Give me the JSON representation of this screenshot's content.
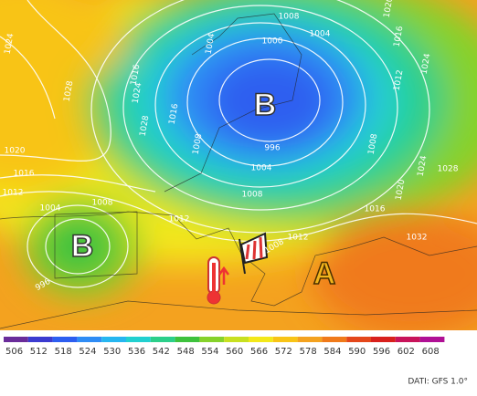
{
  "map": {
    "isobar_labels": [
      "1024",
      "1028",
      "1020",
      "1016",
      "1012",
      "1004",
      "1008",
      "1012",
      "996",
      "1004",
      "1008",
      "1004",
      "1000",
      "1016",
      "1024",
      "1028",
      "1016",
      "1008",
      "996",
      "1004",
      "1008",
      "1012",
      "1008",
      "1012",
      "1016",
      "1020",
      "1024",
      "1028",
      "1024",
      "1020",
      "1016",
      "1032",
      "1008"
    ],
    "centers": [
      {
        "label": "B"
      },
      {
        "label": "B"
      },
      {
        "label": "A"
      }
    ],
    "scale": {
      "labels": [
        "506",
        "512",
        "518",
        "524",
        "530",
        "536",
        "542",
        "548",
        "554",
        "560",
        "566",
        "572",
        "578",
        "584",
        "590",
        "596",
        "602",
        "608"
      ],
      "colors": [
        "#6a2c9a",
        "#3b3bd0",
        "#2d5ef0",
        "#2f8cf5",
        "#26b6f0",
        "#22d0d0",
        "#2ccf8a",
        "#3ec23d",
        "#86d22b",
        "#c8e020",
        "#f3e81a",
        "#f8c417",
        "#f4a21f",
        "#f07a1a",
        "#e4471a",
        "#d8201c",
        "#c8145a",
        "#b01095"
      ]
    },
    "credit": "DATI: GFS 1.0°"
  }
}
